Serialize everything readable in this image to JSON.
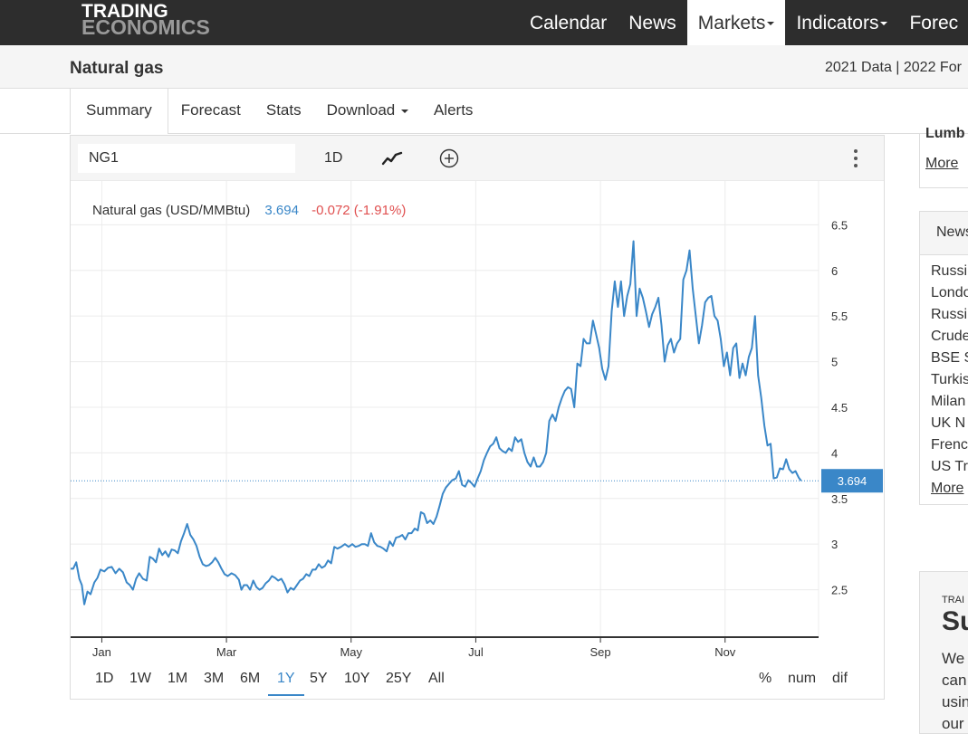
{
  "nav": {
    "logo_line1": "TRADING",
    "logo_line2": "ECONOMICS",
    "items": [
      "Calendar",
      "News",
      "Markets",
      "Indicators",
      "Forec"
    ],
    "active": "Markets"
  },
  "header": {
    "title": "Natural gas",
    "data_links": "2021 Data | 2022 For"
  },
  "tabs": [
    "Summary",
    "Forecast",
    "Stats",
    "Download",
    "Alerts"
  ],
  "chart_toolbar": {
    "symbol": "NG1",
    "interval": "1D"
  },
  "range_buttons": [
    "1D",
    "1W",
    "1M",
    "3M",
    "6M",
    "1Y",
    "5Y",
    "10Y",
    "25Y",
    "All"
  ],
  "range_active": "1Y",
  "mode_buttons": [
    "%",
    "num",
    "dif"
  ],
  "right_col": {
    "box1_partial": "Lumb",
    "box1_more": "More",
    "news_header": "News",
    "news_items": [
      "Russi",
      "Londo",
      "Russi",
      "Crude",
      "BSE S",
      "Turkis",
      "Milan",
      "UK N",
      "Frenc",
      "US Tr"
    ],
    "news_more": "More",
    "box3_small": "TRAI",
    "box3_big": "Su",
    "box3_lines": [
      "We",
      "can",
      "usin",
      "our"
    ]
  },
  "chart_data": {
    "type": "line",
    "title": "Natural gas (USD/MMBtu)",
    "last_value": "3.694",
    "change": "-0.072 (-1.91%)",
    "last_value_label": "3.694",
    "colors": {
      "line": "#3a87c8",
      "last_value": "#3a87c8",
      "change": "#e05050"
    },
    "ylim": [
      1.98,
      6.98
    ],
    "yticks": [
      2.5,
      3,
      3.5,
      4,
      4.5,
      5,
      5.5,
      6,
      6.5
    ],
    "xlim": [
      0,
      12
    ],
    "xticks": [
      {
        "label": "Jan",
        "x": 0.5
      },
      {
        "label": "Mar",
        "x": 2.5
      },
      {
        "label": "May",
        "x": 4.5
      },
      {
        "label": "Jul",
        "x": 6.5
      },
      {
        "label": "Sep",
        "x": 8.5
      },
      {
        "label": "Nov",
        "x": 10.5
      }
    ],
    "grid": true,
    "series": [
      {
        "values": [
          [
            0.0,
            2.73
          ],
          [
            0.04,
            2.73
          ],
          [
            0.09,
            2.8
          ],
          [
            0.14,
            2.62
          ],
          [
            0.18,
            2.55
          ],
          [
            0.22,
            2.34
          ],
          [
            0.27,
            2.48
          ],
          [
            0.32,
            2.45
          ],
          [
            0.38,
            2.58
          ],
          [
            0.43,
            2.63
          ],
          [
            0.48,
            2.72
          ],
          [
            0.54,
            2.7
          ],
          [
            0.6,
            2.74
          ],
          [
            0.66,
            2.75
          ],
          [
            0.72,
            2.68
          ],
          [
            0.78,
            2.73
          ],
          [
            0.84,
            2.69
          ],
          [
            0.9,
            2.58
          ],
          [
            0.95,
            2.55
          ],
          [
            1.0,
            2.5
          ],
          [
            1.05,
            2.62
          ],
          [
            1.1,
            2.68
          ],
          [
            1.16,
            2.62
          ],
          [
            1.22,
            2.6
          ],
          [
            1.27,
            2.86
          ],
          [
            1.32,
            2.84
          ],
          [
            1.37,
            2.8
          ],
          [
            1.42,
            2.95
          ],
          [
            1.47,
            2.88
          ],
          [
            1.52,
            2.92
          ],
          [
            1.57,
            2.86
          ],
          [
            1.62,
            2.94
          ],
          [
            1.67,
            2.93
          ],
          [
            1.72,
            2.9
          ],
          [
            1.77,
            3.03
          ],
          [
            1.82,
            3.12
          ],
          [
            1.87,
            3.22
          ],
          [
            1.92,
            3.1
          ],
          [
            1.97,
            3.05
          ],
          [
            2.02,
            2.98
          ],
          [
            2.07,
            2.86
          ],
          [
            2.12,
            2.78
          ],
          [
            2.17,
            2.76
          ],
          [
            2.22,
            2.77
          ],
          [
            2.27,
            2.8
          ],
          [
            2.32,
            2.85
          ],
          [
            2.37,
            2.8
          ],
          [
            2.42,
            2.73
          ],
          [
            2.47,
            2.67
          ],
          [
            2.52,
            2.65
          ],
          [
            2.58,
            2.68
          ],
          [
            2.64,
            2.66
          ],
          [
            2.7,
            2.61
          ],
          [
            2.74,
            2.5
          ],
          [
            2.78,
            2.55
          ],
          [
            2.83,
            2.55
          ],
          [
            2.88,
            2.5
          ],
          [
            2.93,
            2.6
          ],
          [
            2.98,
            2.53
          ],
          [
            3.03,
            2.5
          ],
          [
            3.08,
            2.52
          ],
          [
            3.13,
            2.57
          ],
          [
            3.18,
            2.6
          ],
          [
            3.23,
            2.65
          ],
          [
            3.28,
            2.63
          ],
          [
            3.33,
            2.6
          ],
          [
            3.38,
            2.62
          ],
          [
            3.43,
            2.56
          ],
          [
            3.48,
            2.47
          ],
          [
            3.53,
            2.52
          ],
          [
            3.58,
            2.5
          ],
          [
            3.63,
            2.55
          ],
          [
            3.68,
            2.6
          ],
          [
            3.73,
            2.62
          ],
          [
            3.78,
            2.67
          ],
          [
            3.83,
            2.65
          ],
          [
            3.88,
            2.72
          ],
          [
            3.93,
            2.72
          ],
          [
            3.98,
            2.78
          ],
          [
            4.03,
            2.74
          ],
          [
            4.08,
            2.76
          ],
          [
            4.13,
            2.82
          ],
          [
            4.18,
            2.79
          ],
          [
            4.23,
            2.97
          ],
          [
            4.28,
            2.95
          ],
          [
            4.34,
            2.97
          ],
          [
            4.4,
            3.0
          ],
          [
            4.46,
            2.97
          ],
          [
            4.52,
            3.0
          ],
          [
            4.57,
            2.97
          ],
          [
            4.62,
            2.98
          ],
          [
            4.67,
            3.0
          ],
          [
            4.72,
            3.0
          ],
          [
            4.77,
            2.98
          ],
          [
            4.82,
            3.12
          ],
          [
            4.87,
            3.02
          ],
          [
            4.92,
            2.98
          ],
          [
            4.97,
            2.97
          ],
          [
            5.02,
            2.95
          ],
          [
            5.07,
            2.92
          ],
          [
            5.12,
            3.03
          ],
          [
            5.17,
            2.98
          ],
          [
            5.22,
            3.07
          ],
          [
            5.27,
            3.08
          ],
          [
            5.32,
            3.1
          ],
          [
            5.37,
            3.05
          ],
          [
            5.42,
            3.12
          ],
          [
            5.47,
            3.12
          ],
          [
            5.52,
            3.17
          ],
          [
            5.57,
            3.15
          ],
          [
            5.62,
            3.35
          ],
          [
            5.67,
            3.33
          ],
          [
            5.72,
            3.23
          ],
          [
            5.77,
            3.26
          ],
          [
            5.82,
            3.22
          ],
          [
            5.87,
            3.3
          ],
          [
            5.92,
            3.42
          ],
          [
            5.97,
            3.55
          ],
          [
            6.02,
            3.62
          ],
          [
            6.07,
            3.66
          ],
          [
            6.12,
            3.7
          ],
          [
            6.18,
            3.72
          ],
          [
            6.23,
            3.8
          ],
          [
            6.28,
            3.65
          ],
          [
            6.33,
            3.63
          ],
          [
            6.38,
            3.7
          ],
          [
            6.43,
            3.67
          ],
          [
            6.48,
            3.63
          ],
          [
            6.53,
            3.72
          ],
          [
            6.58,
            3.8
          ],
          [
            6.63,
            3.92
          ],
          [
            6.68,
            4.0
          ],
          [
            6.73,
            4.07
          ],
          [
            6.78,
            4.1
          ],
          [
            6.83,
            4.17
          ],
          [
            6.88,
            4.05
          ],
          [
            6.93,
            4.02
          ],
          [
            6.98,
            4.0
          ],
          [
            7.03,
            4.05
          ],
          [
            7.08,
            4.02
          ],
          [
            7.13,
            4.17
          ],
          [
            7.18,
            4.12
          ],
          [
            7.23,
            4.15
          ],
          [
            7.28,
            4.0
          ],
          [
            7.33,
            3.9
          ],
          [
            7.38,
            3.85
          ],
          [
            7.43,
            3.95
          ],
          [
            7.48,
            3.85
          ],
          [
            7.53,
            3.85
          ],
          [
            7.58,
            3.9
          ],
          [
            7.63,
            4.0
          ],
          [
            7.68,
            4.35
          ],
          [
            7.73,
            4.42
          ],
          [
            7.78,
            4.35
          ],
          [
            7.83,
            4.5
          ],
          [
            7.88,
            4.6
          ],
          [
            7.93,
            4.68
          ],
          [
            7.98,
            4.72
          ],
          [
            8.03,
            4.7
          ],
          [
            8.08,
            4.5
          ],
          [
            8.13,
            4.98
          ],
          [
            8.18,
            4.95
          ],
          [
            8.23,
            5.25
          ],
          [
            8.28,
            5.2
          ],
          [
            8.33,
            5.2
          ],
          [
            8.38,
            5.45
          ],
          [
            8.43,
            5.3
          ],
          [
            8.48,
            5.15
          ],
          [
            8.53,
            4.92
          ],
          [
            8.58,
            4.8
          ],
          [
            8.63,
            4.95
          ],
          [
            8.68,
            5.55
          ],
          [
            8.73,
            5.88
          ],
          [
            8.78,
            5.6
          ],
          [
            8.83,
            5.88
          ],
          [
            8.88,
            5.5
          ],
          [
            8.93,
            5.72
          ],
          [
            8.98,
            5.85
          ],
          [
            9.03,
            6.32
          ],
          [
            9.08,
            5.5
          ],
          [
            9.13,
            5.8
          ],
          [
            9.18,
            5.7
          ],
          [
            9.23,
            5.55
          ],
          [
            9.28,
            5.38
          ],
          [
            9.33,
            5.52
          ],
          [
            9.38,
            5.6
          ],
          [
            9.43,
            5.7
          ],
          [
            9.48,
            5.4
          ],
          [
            9.53,
            5.0
          ],
          [
            9.58,
            5.18
          ],
          [
            9.63,
            5.25
          ],
          [
            9.68,
            5.1
          ],
          [
            9.73,
            5.2
          ],
          [
            9.78,
            5.25
          ],
          [
            9.83,
            5.9
          ],
          [
            9.88,
            6.0
          ],
          [
            9.93,
            6.22
          ],
          [
            9.98,
            5.8
          ],
          [
            10.03,
            5.5
          ],
          [
            10.08,
            5.2
          ],
          [
            10.13,
            5.4
          ],
          [
            10.18,
            5.65
          ],
          [
            10.23,
            5.7
          ],
          [
            10.28,
            5.72
          ],
          [
            10.33,
            5.5
          ],
          [
            10.38,
            5.45
          ],
          [
            10.43,
            5.25
          ],
          [
            10.48,
            4.95
          ],
          [
            10.53,
            5.1
          ],
          [
            10.58,
            4.85
          ],
          [
            10.63,
            5.15
          ],
          [
            10.68,
            5.2
          ],
          [
            10.73,
            4.82
          ],
          [
            10.78,
            4.98
          ],
          [
            10.83,
            4.85
          ],
          [
            10.88,
            5.05
          ],
          [
            10.93,
            5.15
          ],
          [
            10.98,
            5.5
          ],
          [
            11.03,
            4.85
          ],
          [
            11.08,
            4.6
          ],
          [
            11.13,
            4.3
          ],
          [
            11.18,
            4.08
          ],
          [
            11.23,
            4.1
          ],
          [
            11.28,
            3.72
          ],
          [
            11.33,
            3.73
          ],
          [
            11.38,
            3.83
          ],
          [
            11.43,
            3.82
          ],
          [
            11.48,
            3.93
          ],
          [
            11.53,
            3.82
          ],
          [
            11.58,
            3.78
          ],
          [
            11.63,
            3.8
          ],
          [
            11.68,
            3.73
          ],
          [
            11.72,
            3.694
          ]
        ]
      }
    ]
  }
}
